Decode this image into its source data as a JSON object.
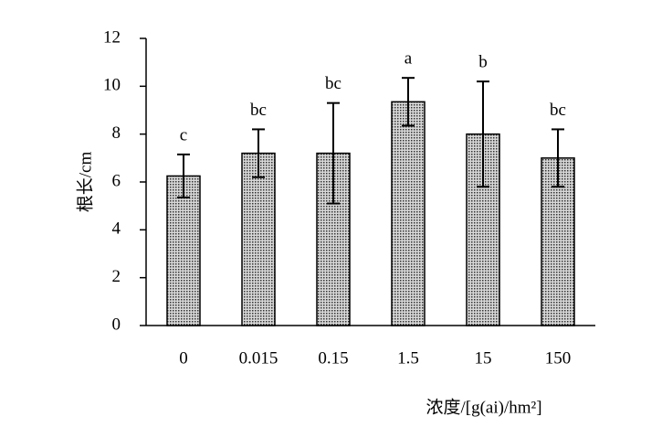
{
  "chart_data": {
    "type": "bar",
    "y_label": "根长/cm",
    "x_label": "浓度/[g(ai)/hm²]",
    "categories": [
      "0",
      "0.015",
      "0.15",
      "1.5",
      "15",
      "150"
    ],
    "values": [
      6.25,
      7.2,
      7.2,
      9.35,
      8.0,
      7.0
    ],
    "errors": [
      0.9,
      1.0,
      2.1,
      1.0,
      2.2,
      1.2
    ],
    "labels": [
      "c",
      "bc",
      "bc",
      "a",
      "b",
      "bc"
    ],
    "color": "#8c8c8c",
    "ylim": [
      0,
      12
    ],
    "yticks": [
      0,
      2,
      4,
      6,
      8,
      10,
      12
    ]
  }
}
